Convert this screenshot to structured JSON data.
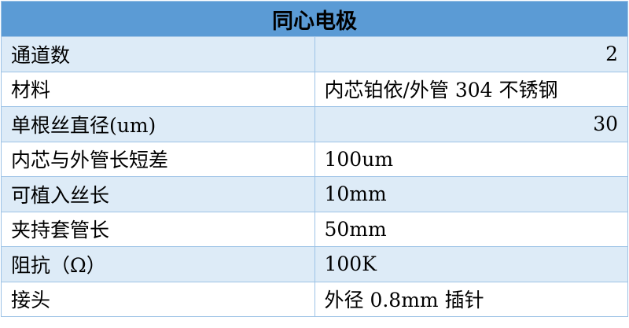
{
  "table": {
    "title": "同心电极",
    "rows": [
      [
        "通道数",
        2
      ],
      [
        "材料",
        "内芯铂依/外管 304 不锈钢"
      ],
      [
        "单根丝直径(um)",
        30
      ],
      [
        "内芯与外管长短差",
        "100um"
      ],
      [
        "可植入丝长",
        "10mm"
      ],
      [
        "夹持套管长",
        "50mm"
      ],
      [
        "阻抗（Ω）",
        "100K"
      ],
      [
        "接头",
        "外径 0.8mm 插针"
      ]
    ]
  }
}
